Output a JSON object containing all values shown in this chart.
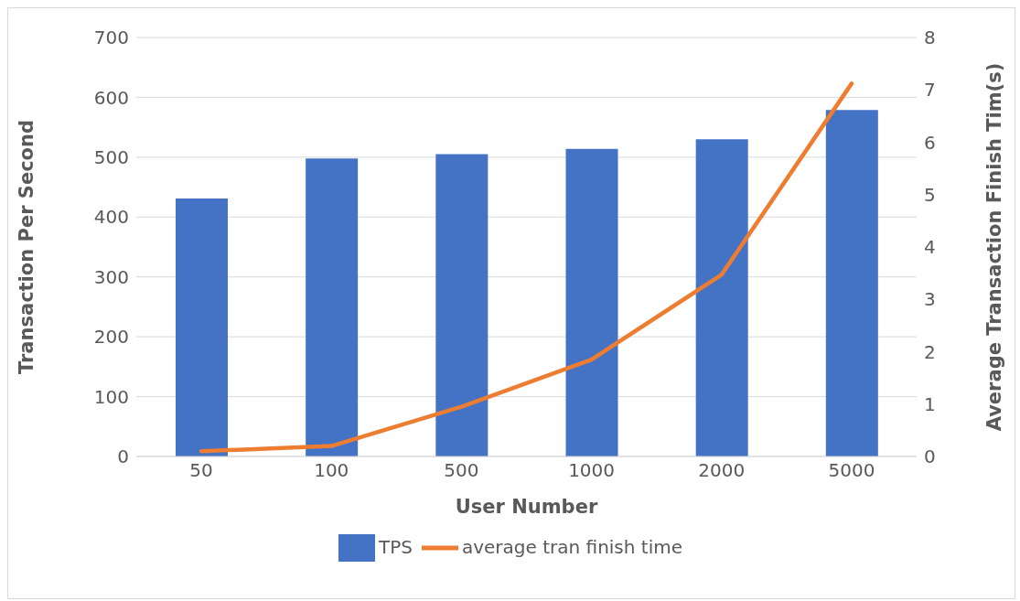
{
  "chart_data": {
    "type": "bar",
    "xlabel": "User Number",
    "ylabel": "Transaction Per Second",
    "y2label": "Average Transaction Finish Tim(s)",
    "categories": [
      "50",
      "100",
      "500",
      "1000",
      "2000",
      "5000"
    ],
    "series": [
      {
        "name": "TPS",
        "color": "#4472c4",
        "values": [
          431,
          498,
          505,
          514,
          530,
          579
        ]
      },
      {
        "name": "average tran finish time",
        "type": "line",
        "axis": "y2",
        "color": "#ed7d31",
        "values": [
          0.1,
          0.2,
          0.95,
          1.85,
          3.47,
          7.12
        ]
      }
    ],
    "ylim": [
      0,
      700
    ],
    "yticks": [
      0,
      100,
      200,
      300,
      400,
      500,
      600,
      700
    ],
    "y2lim": [
      0,
      8
    ],
    "y2ticks": [
      0,
      1,
      2,
      3,
      4,
      5,
      6,
      7,
      8
    ],
    "grid": "y",
    "legend": "bottom",
    "marker": "none",
    "line_style": "solid"
  }
}
